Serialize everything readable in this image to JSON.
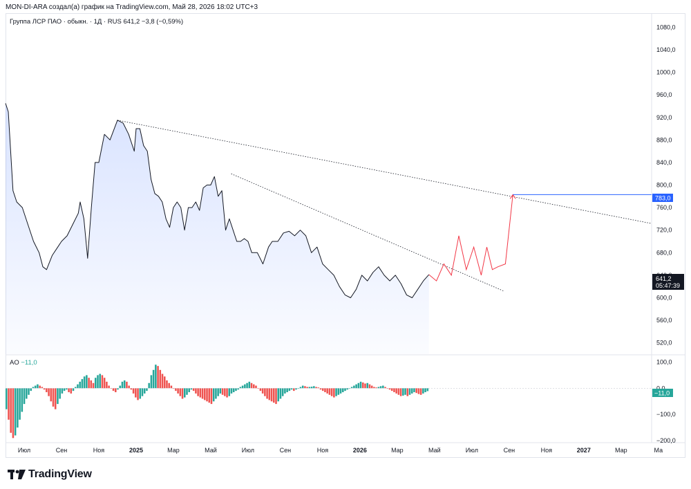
{
  "header": {
    "attribution": "MON-DI-ARA создал(а) график на TradingView.com, Май 28, 2026 18:02 UTC+3"
  },
  "legend": {
    "symbol_line": "Группа ЛСР ПАО · обыкн. · 1Д · RUS  641,2  −3,8 (−0,59%)"
  },
  "ao_legend": {
    "label": "AO",
    "value": "−11,0"
  },
  "price_badges": {
    "last_price": "641,2",
    "countdown": "05:47:39",
    "target": "783,0",
    "ao_value": "−11,0"
  },
  "colors": {
    "price_line": "#131722",
    "area": "#2962ff",
    "target_line": "#2962ff",
    "projection": "#f23645",
    "ao_up": "#26a69a",
    "ao_down": "#ef5350"
  },
  "logo": {
    "text": "TradingView",
    "icon": "tradingview-logo-icon"
  },
  "chart_data": [
    {
      "type": "line",
      "name": "Группа ЛСР ПАО · обыкн.",
      "x_axis": {
        "ticks": [
          "Июл",
          "Сен",
          "Ноя",
          "2025",
          "Мар",
          "Май",
          "Июл",
          "Сен",
          "Ноя",
          "2026",
          "Мар",
          "Май",
          "Июл",
          "Сен",
          "Ноя",
          "2027",
          "Мар",
          "Ма"
        ]
      },
      "y_axis": {
        "ylim": [
          500,
          1105
        ],
        "ticks": [
          "1080,0",
          "1040,0",
          "1000,0",
          "960,0",
          "920,0",
          "880,0",
          "840,0",
          "800,0",
          "760,0",
          "720,0",
          "680,0",
          "640,0",
          "600,0",
          "560,0",
          "520,0"
        ],
        "tick_values": [
          1080,
          1040,
          1000,
          960,
          920,
          880,
          840,
          800,
          760,
          720,
          680,
          640,
          600,
          560,
          520
        ]
      },
      "x_range_months": [
        0,
        34.6
      ],
      "x_unit": "months since Jun 2024",
      "series": {
        "x": [
          0,
          0.15,
          0.4,
          0.6,
          0.9,
          1.2,
          1.5,
          1.8,
          2.0,
          2.2,
          2.5,
          2.8,
          3.0,
          3.3,
          3.6,
          3.9,
          4.0,
          4.2,
          4.4,
          4.6,
          4.8,
          5.0,
          5.3,
          5.6,
          6.0,
          6.3,
          6.6,
          6.9,
          7.0,
          7.2,
          7.4,
          7.6,
          7.8,
          8.0,
          8.2,
          8.4,
          8.6,
          8.8,
          9.0,
          9.2,
          9.4,
          9.6,
          9.8,
          10.0,
          10.2,
          10.4,
          10.6,
          10.8,
          11.0,
          11.2,
          11.4,
          11.6,
          11.8,
          12.0,
          12.2,
          12.4,
          12.6,
          12.8,
          13.0,
          13.2,
          13.5,
          13.8,
          14.1,
          14.3,
          14.6,
          14.9,
          15.2,
          15.5,
          15.8,
          16.1,
          16.4,
          16.7,
          17.0,
          17.3,
          17.6,
          17.9,
          18.2,
          18.5,
          18.8,
          19.1,
          19.4,
          19.7,
          20.0,
          20.3,
          20.6,
          20.9,
          21.2,
          21.5,
          21.8,
          22.1,
          22.4,
          22.7
        ],
        "y": [
          945,
          930,
          790,
          770,
          760,
          730,
          700,
          680,
          655,
          650,
          675,
          690,
          700,
          710,
          730,
          750,
          770,
          740,
          670,
          760,
          840,
          840,
          890,
          880,
          915,
          910,
          890,
          860,
          900,
          900,
          870,
          860,
          810,
          785,
          780,
          770,
          740,
          725,
          760,
          770,
          760,
          720,
          760,
          760,
          770,
          755,
          795,
          800,
          800,
          815,
          780,
          790,
          720,
          740,
          720,
          700,
          700,
          705,
          700,
          680,
          680,
          660,
          690,
          700,
          700,
          715,
          718,
          710,
          720,
          710,
          680,
          690,
          660,
          650,
          640,
          620,
          605,
          600,
          615,
          640,
          630,
          645,
          655,
          640,
          630,
          640,
          625,
          605,
          600,
          615,
          630,
          641.2
        ]
      }
    },
    {
      "type": "line",
      "name": "trendlines",
      "lines": [
        {
          "style": "dotted",
          "from": [
            6.0,
            915
          ],
          "to": [
            34.6,
            732
          ]
        },
        {
          "style": "dotted",
          "from": [
            12.1,
            820
          ],
          "to": [
            26.7,
            612
          ]
        }
      ]
    },
    {
      "type": "line",
      "name": "projection",
      "x": [
        22.7,
        23.1,
        23.5,
        23.9,
        24.3,
        24.7,
        25.1,
        25.5,
        25.8,
        26.1,
        26.4,
        26.8,
        27.2
      ],
      "y": [
        641,
        630,
        660,
        640,
        710,
        650,
        690,
        640,
        690,
        650,
        655,
        660,
        783
      ]
    },
    {
      "type": "line",
      "name": "target",
      "x": [
        27.2,
        34.6
      ],
      "y": [
        783,
        783
      ]
    },
    {
      "type": "bar",
      "name": "AO",
      "y_axis": {
        "ylim": [
          -205,
          125
        ],
        "ticks": [
          "100,0",
          "0,0",
          "−100,0",
          "−200,0"
        ],
        "tick_values": [
          100,
          0,
          -100,
          -200
        ]
      },
      "x_range_months": [
        0,
        22.7
      ],
      "values": [
        -80,
        -120,
        -170,
        -190,
        -180,
        -150,
        -120,
        -90,
        -60,
        -40,
        -25,
        -10,
        5,
        10,
        15,
        10,
        5,
        -5,
        -15,
        -30,
        -50,
        -70,
        -80,
        -60,
        -40,
        -20,
        -10,
        -5,
        -15,
        -20,
        -10,
        5,
        15,
        25,
        35,
        45,
        50,
        40,
        30,
        20,
        40,
        50,
        55,
        50,
        40,
        25,
        10,
        0,
        -10,
        -15,
        -5,
        10,
        25,
        30,
        25,
        10,
        -5,
        -20,
        -35,
        -45,
        -40,
        -30,
        -20,
        -10,
        20,
        50,
        70,
        90,
        85,
        70,
        55,
        45,
        30,
        20,
        10,
        0,
        -10,
        -20,
        -30,
        -40,
        -35,
        -25,
        -15,
        -5,
        -10,
        -20,
        -30,
        -35,
        -40,
        -45,
        -50,
        -55,
        -60,
        -50,
        -40,
        -30,
        -20,
        -25,
        -30,
        -35,
        -30,
        -20,
        -15,
        -10,
        -5,
        5,
        10,
        15,
        20,
        25,
        20,
        15,
        10,
        0,
        -10,
        -20,
        -30,
        -40,
        -45,
        -50,
        -55,
        -60,
        -50,
        -40,
        -30,
        -20,
        -15,
        -10,
        -5,
        -10,
        -5,
        0,
        5,
        10,
        8,
        5,
        5,
        6,
        8,
        5,
        3,
        -5,
        -10,
        -15,
        -20,
        -25,
        -30,
        -35,
        -30,
        -25,
        -20,
        -15,
        -10,
        -5,
        0,
        5,
        10,
        15,
        20,
        25,
        22,
        18,
        20,
        15,
        10,
        5,
        3,
        5,
        8,
        10,
        5,
        0,
        -5,
        -10,
        -15,
        -20,
        -25,
        -30,
        -28,
        -25,
        -30,
        -25,
        -20,
        -15,
        -18,
        -22,
        -25,
        -20,
        -15,
        -11
      ]
    }
  ]
}
